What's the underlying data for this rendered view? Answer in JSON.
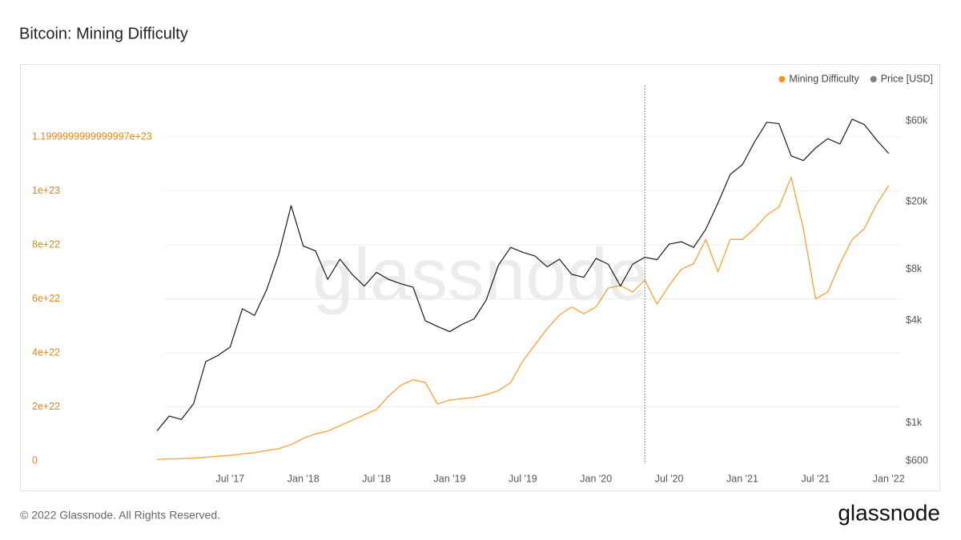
{
  "chart_data": {
    "type": "line",
    "title": "Bitcoin: Mining Difficulty",
    "watermark": "glassnode",
    "footer": "© 2022 Glassnode. All Rights Reserved.",
    "logo": "glassnode",
    "x": [
      "2017-01",
      "2017-02",
      "2017-03",
      "2017-04",
      "2017-05",
      "2017-06",
      "2017-07",
      "2017-08",
      "2017-09",
      "2017-10",
      "2017-11",
      "2017-12",
      "2018-01",
      "2018-02",
      "2018-03",
      "2018-04",
      "2018-05",
      "2018-06",
      "2018-07",
      "2018-08",
      "2018-09",
      "2018-10",
      "2018-11",
      "2018-12",
      "2019-01",
      "2019-02",
      "2019-03",
      "2019-04",
      "2019-05",
      "2019-06",
      "2019-07",
      "2019-08",
      "2019-09",
      "2019-10",
      "2019-11",
      "2019-12",
      "2020-01",
      "2020-02",
      "2020-03",
      "2020-04",
      "2020-05",
      "2020-06",
      "2020-07",
      "2020-08",
      "2020-09",
      "2020-10",
      "2020-11",
      "2020-12",
      "2021-01",
      "2021-02",
      "2021-03",
      "2021-04",
      "2021-05",
      "2021-06",
      "2021-07",
      "2021-08",
      "2021-09",
      "2021-10",
      "2021-11",
      "2021-12",
      "2022-01"
    ],
    "xlim": [
      "2017-01",
      "2022-02"
    ],
    "xticks": [
      {
        "value": "2017-07",
        "label": "Jul '17"
      },
      {
        "value": "2018-01",
        "label": "Jan '18"
      },
      {
        "value": "2018-07",
        "label": "Jul '18"
      },
      {
        "value": "2019-01",
        "label": "Jan '19"
      },
      {
        "value": "2019-07",
        "label": "Jul '19"
      },
      {
        "value": "2020-01",
        "label": "Jan '20"
      },
      {
        "value": "2020-07",
        "label": "Jul '20"
      },
      {
        "value": "2021-01",
        "label": "Jan '21"
      },
      {
        "value": "2021-07",
        "label": "Jul '21"
      },
      {
        "value": "2022-01",
        "label": "Jan '22"
      }
    ],
    "vline_x": "2020-05",
    "ylim": [
      0,
      1.39e+23
    ],
    "yticks": [
      0,
      {
        "value": 2e+22,
        "label": "2e+22"
      },
      {
        "value": 4e+22,
        "label": "4e+22"
      },
      {
        "value": 6e+22,
        "label": "6e+22"
      },
      {
        "value": 8e+22,
        "label": "8e+22"
      },
      {
        "value": 1e+23,
        "label": "1e+23"
      },
      {
        "value": 1.2e+23,
        "label": "1.1999999999999997e+23"
      }
    ],
    "y2lim": [
      600,
      96600
    ],
    "y2_log": true,
    "y2ticks": [
      {
        "value": 600,
        "label": "$600"
      },
      {
        "value": 1000,
        "label": "$1k"
      },
      {
        "value": 4000,
        "label": "$4k"
      },
      {
        "value": 8000,
        "label": "$8k"
      },
      {
        "value": 20000,
        "label": "$20k"
      },
      {
        "value": 60000,
        "label": "$60k"
      }
    ],
    "grid": true,
    "legend": "top-right",
    "series": [
      {
        "name": "Mining Difficulty",
        "color": "#f5a742",
        "marker_color": "#f7931a",
        "axis": "y",
        "values": [
          5e+20,
          7e+20,
          8e+20,
          1e+21,
          1.3e+21,
          1.7e+21,
          2e+21,
          2.5e+21,
          3e+21,
          3.8e+21,
          4.5e+21,
          6e+21,
          8.3e+21,
          1e+22,
          1.1e+22,
          1.3e+22,
          1.5e+22,
          1.7e+22,
          1.9e+22,
          2.4e+22,
          2.8e+22,
          3e+22,
          2.9e+22,
          2.1e+22,
          2.25e+22,
          2.3e+22,
          2.35e+22,
          2.45e+22,
          2.6e+22,
          2.9e+22,
          3.7e+22,
          4.3e+22,
          4.9e+22,
          5.4e+22,
          5.7e+22,
          5.45e+22,
          5.7e+22,
          6.4e+22,
          6.5e+22,
          6.25e+22,
          6.7e+22,
          5.8e+22,
          6.5e+22,
          7.1e+22,
          7.3e+22,
          8.2e+22,
          7e+22,
          8.2e+22,
          8.2e+22,
          8.6e+22,
          9.1e+22,
          9.4e+22,
          1.05e+23,
          8.6e+22,
          6e+22,
          6.25e+22,
          7.3e+22,
          8.2e+22,
          8.6e+22,
          9.5e+22,
          1.02e+23
        ]
      },
      {
        "name": "Price [USD]",
        "color": "#1a1a1a",
        "marker_color": "#808080",
        "axis": "y2",
        "values": [
          900,
          1100,
          1050,
          1300,
          2300,
          2500,
          2800,
          4700,
          4300,
          6100,
          9900,
          19000,
          11000,
          10300,
          7000,
          9200,
          7500,
          6400,
          7700,
          7000,
          6600,
          6300,
          4000,
          3700,
          3450,
          3800,
          4100,
          5300,
          8500,
          10800,
          10100,
          9600,
          8300,
          9200,
          7500,
          7200,
          9300,
          8600,
          6400,
          8600,
          9450,
          9140,
          11300,
          11650,
          10800,
          13800,
          19700,
          29000,
          33100,
          45100,
          58800,
          57700,
          37300,
          35000,
          41500,
          47100,
          43800,
          61300,
          57000,
          46300,
          38500
        ]
      }
    ]
  }
}
